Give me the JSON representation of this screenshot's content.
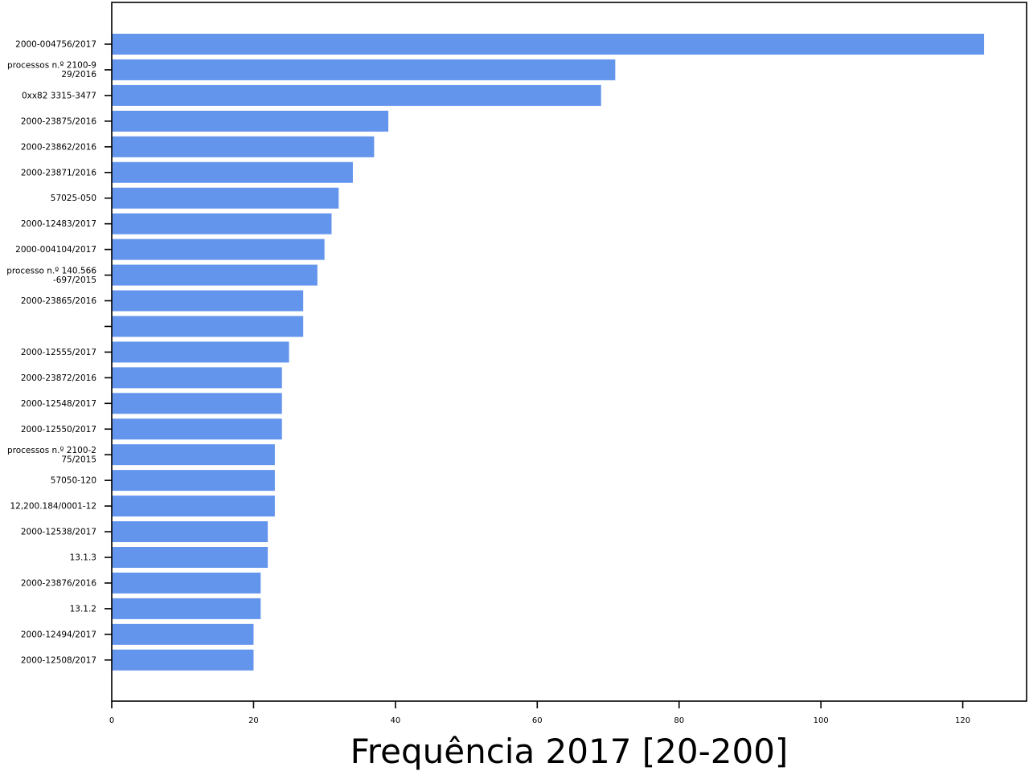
{
  "chart_data": {
    "type": "bar",
    "orientation": "horizontal",
    "title": "",
    "xlabel": "Frequência 2017 [20-200]",
    "ylabel": "",
    "xlim": [
      0,
      129
    ],
    "xticks": [
      0,
      20,
      40,
      60,
      80,
      100,
      120
    ],
    "grid": false,
    "bar_color": "#6495ED",
    "categories": [
      "2000-004756/2017",
      "processos n.º 2100-9\n29/2016",
      "0xx82 3315-3477",
      "2000-23875/2016",
      "2000-23862/2016",
      "2000-23871/2016",
      "57025-050",
      "2000-12483/2017",
      "2000-004104/2017",
      "processo n.º 140.566\n-697/2015",
      "2000-23865/2016",
      "",
      "2000-12555/2017",
      "2000-23872/2016",
      "2000-12548/2017",
      "2000-12550/2017",
      "processos n.º 2100-2\n75/2015",
      "57050-120",
      "12,200.184/0001-12",
      "2000-12538/2017",
      "13.1.3",
      "2000-23876/2016",
      "13.1.2",
      "2000-12494/2017",
      "2000-12508/2017"
    ],
    "values": [
      123,
      71,
      69,
      39,
      37,
      34,
      32,
      31,
      30,
      29,
      27,
      27,
      25,
      24,
      24,
      24,
      23,
      23,
      23,
      22,
      22,
      21,
      21,
      20,
      20
    ]
  }
}
